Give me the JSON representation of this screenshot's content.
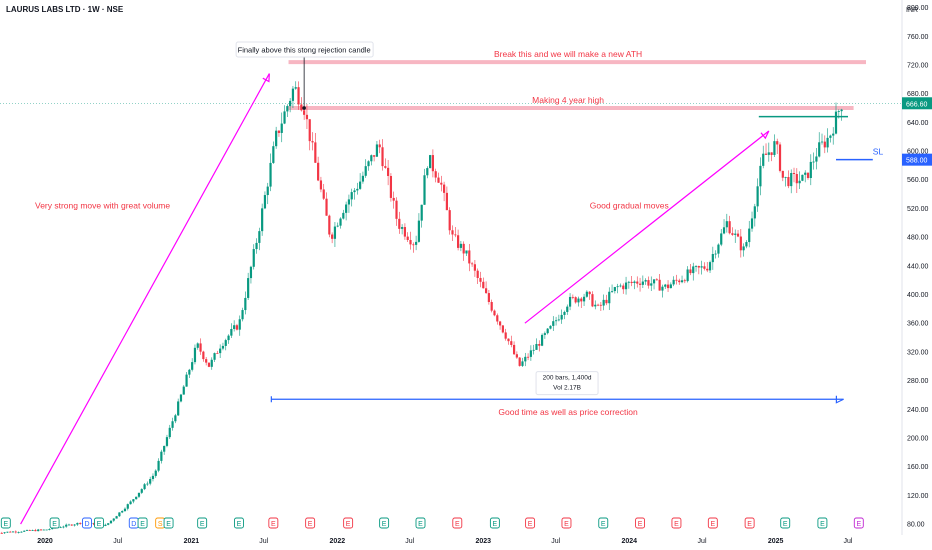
{
  "header": {
    "symbol": "LAURUS LABS LTD · 1W · NSE",
    "currency": "INR"
  },
  "chart_data": {
    "type": "candlestick",
    "ylim": [
      55,
      805
    ],
    "y_ticks": [
      "800.00",
      "760.00",
      "720.00",
      "680.00",
      "640.00",
      "600.00",
      "560.00",
      "520.00",
      "480.00",
      "440.00",
      "400.00",
      "360.00",
      "320.00",
      "280.00",
      "240.00",
      "200.00",
      "160.00",
      "120.00",
      "80.00"
    ],
    "x_ticks": [
      {
        "label": "2020",
        "date": "2020-01-01"
      },
      {
        "label": "Jul",
        "date": "2020-07-01"
      },
      {
        "label": "2021",
        "date": "2021-01-01"
      },
      {
        "label": "Jul",
        "date": "2021-07-01"
      },
      {
        "label": "2022",
        "date": "2022-01-01"
      },
      {
        "label": "Jul",
        "date": "2022-07-01"
      },
      {
        "label": "2023",
        "date": "2023-01-01"
      },
      {
        "label": "Jul",
        "date": "2023-07-01"
      },
      {
        "label": "2024",
        "date": "2024-01-01"
      },
      {
        "label": "Jul",
        "date": "2024-07-01"
      },
      {
        "label": "2025",
        "date": "2025-01-01"
      },
      {
        "label": "Jul",
        "date": "2025-07-01"
      }
    ],
    "last_price": "666.60",
    "sl_price": "588.00",
    "price_path": [
      [
        "2019-09-01",
        68
      ],
      [
        "2020-01-01",
        72
      ],
      [
        "2020-04-01",
        82
      ],
      [
        "2020-06-01",
        78
      ],
      [
        "2020-08-01",
        110
      ],
      [
        "2020-10-01",
        150
      ],
      [
        "2020-12-01",
        250
      ],
      [
        "2021-01-15",
        330
      ],
      [
        "2021-02-15",
        300
      ],
      [
        "2021-03-15",
        330
      ],
      [
        "2021-05-01",
        360
      ],
      [
        "2021-06-15",
        480
      ],
      [
        "2021-08-01",
        620
      ],
      [
        "2021-09-15",
        690
      ],
      [
        "2021-10-10",
        660
      ],
      [
        "2021-11-15",
        560
      ],
      [
        "2021-12-15",
        480
      ],
      [
        "2022-01-15",
        520
      ],
      [
        "2022-03-01",
        560
      ],
      [
        "2022-04-15",
        610
      ],
      [
        "2022-06-01",
        500
      ],
      [
        "2022-07-15",
        470
      ],
      [
        "2022-08-15",
        590
      ],
      [
        "2022-09-15",
        560
      ],
      [
        "2022-10-15",
        480
      ],
      [
        "2022-11-15",
        460
      ],
      [
        "2023-01-15",
        390
      ],
      [
        "2023-03-01",
        340
      ],
      [
        "2023-04-01",
        300
      ],
      [
        "2023-05-01",
        320
      ],
      [
        "2023-06-15",
        350
      ],
      [
        "2023-08-01",
        390
      ],
      [
        "2023-09-15",
        400
      ],
      [
        "2023-10-15",
        380
      ],
      [
        "2023-12-01",
        410
      ],
      [
        "2024-02-01",
        420
      ],
      [
        "2024-04-01",
        410
      ],
      [
        "2024-06-01",
        430
      ],
      [
        "2024-07-15",
        440
      ],
      [
        "2024-09-01",
        500
      ],
      [
        "2024-10-15",
        460
      ],
      [
        "2024-12-01",
        590
      ],
      [
        "2025-01-01",
        610
      ],
      [
        "2025-01-20",
        560
      ],
      [
        "2025-03-15",
        560
      ],
      [
        "2025-04-15",
        600
      ],
      [
        "2025-05-15",
        620
      ],
      [
        "2025-06-15",
        667
      ]
    ],
    "horizontal_levels": [
      {
        "name": "ath-line",
        "price": 724,
        "from": "2021-09-01",
        "to": "2025-08-15",
        "color": "#f7b6c2"
      },
      {
        "name": "four-year-high-line",
        "price": 660,
        "from": "2021-09-01",
        "to": "2025-07-15",
        "color": "#f7b6c2"
      },
      {
        "name": "breakout-line",
        "price": 648,
        "from": "2024-11-20",
        "to": "2025-07-01",
        "color": "#089981"
      },
      {
        "name": "sl-line",
        "price": 588,
        "from": "2025-06-01",
        "to": "2025-09-01",
        "color": "#2962ff"
      }
    ],
    "annotations": [
      {
        "name": "label-very-strong-move",
        "text": "Very strong move with great volume",
        "date": "2020-07-01",
        "price": 520,
        "color": "#f23645"
      },
      {
        "name": "label-break-ath",
        "text": "Break this and we will make a new ATH",
        "date": "2023-08-01",
        "price": 731,
        "color": "#f23645"
      },
      {
        "name": "label-four-year-high",
        "text": "Making 4 year high",
        "date": "2023-08-01",
        "price": 667,
        "color": "#f23645"
      },
      {
        "name": "label-gradual-moves",
        "text": "Good gradual moves",
        "date": "2024-01-01",
        "price": 520,
        "color": "#f23645"
      },
      {
        "name": "label-time-price-correction",
        "text": "Good time as well as price correction",
        "date": "2023-08-01",
        "price": 232,
        "color": "#f23645"
      },
      {
        "name": "label-sl",
        "text": "SL",
        "date": "2025-09-01",
        "price": 595,
        "color": "#2962ff"
      }
    ],
    "callout": {
      "text": "Finally above this stong rejection candle",
      "date": "2021-10-10",
      "price": 660
    },
    "range_box": {
      "line1": "200 bars, 1,400d",
      "line2": "Vol 2.17B",
      "date": "2023-08-01",
      "price": 287
    },
    "arrows": [
      {
        "name": "arrow-strong-move",
        "from": [
          "2019-11-01",
          80
        ],
        "to": [
          "2021-07-15",
          708
        ],
        "color": "#ff00ff"
      },
      {
        "name": "arrow-gradual-moves",
        "from": [
          "2023-04-15",
          360
        ],
        "to": [
          "2024-12-15",
          628
        ],
        "color": "#ff00ff"
      },
      {
        "name": "arrow-time-correction",
        "from": [
          "2021-07-20",
          254
        ],
        "to": [
          "2025-06-20",
          254
        ],
        "color": "#2962ff"
      }
    ],
    "events": [
      {
        "letter": "E",
        "date": "2019-09-25",
        "color": "#089981"
      },
      {
        "letter": "E",
        "date": "2020-01-25",
        "color": "#089981"
      },
      {
        "letter": "D",
        "date": "2020-04-15",
        "color": "#2962ff"
      },
      {
        "letter": "E",
        "date": "2020-05-15",
        "color": "#089981"
      },
      {
        "letter": "D",
        "date": "2020-08-10",
        "color": "#2962ff"
      },
      {
        "letter": "E",
        "date": "2020-09-01",
        "color": "#089981"
      },
      {
        "letter": "S",
        "date": "2020-10-15",
        "color": "#ff9800"
      },
      {
        "letter": "E",
        "date": "2020-11-05",
        "color": "#089981"
      },
      {
        "letter": "E",
        "date": "2021-01-28",
        "color": "#089981"
      },
      {
        "letter": "E",
        "date": "2021-04-30",
        "color": "#089981"
      },
      {
        "letter": "E",
        "date": "2021-07-25",
        "color": "#f23645"
      },
      {
        "letter": "E",
        "date": "2021-10-25",
        "color": "#f23645"
      },
      {
        "letter": "E",
        "date": "2022-01-28",
        "color": "#f23645"
      },
      {
        "letter": "E",
        "date": "2022-04-28",
        "color": "#089981"
      },
      {
        "letter": "E",
        "date": "2022-07-28",
        "color": "#089981"
      },
      {
        "letter": "E",
        "date": "2022-10-28",
        "color": "#f23645"
      },
      {
        "letter": "E",
        "date": "2023-01-30",
        "color": "#089981"
      },
      {
        "letter": "E",
        "date": "2023-04-28",
        "color": "#f23645"
      },
      {
        "letter": "E",
        "date": "2023-07-28",
        "color": "#f23645"
      },
      {
        "letter": "E",
        "date": "2023-10-28",
        "color": "#089981"
      },
      {
        "letter": "E",
        "date": "2024-01-28",
        "color": "#f23645"
      },
      {
        "letter": "E",
        "date": "2024-04-28",
        "color": "#f23645"
      },
      {
        "letter": "E",
        "date": "2024-07-28",
        "color": "#f23645"
      },
      {
        "letter": "E",
        "date": "2024-10-28",
        "color": "#f23645"
      },
      {
        "letter": "E",
        "date": "2025-01-25",
        "color": "#089981"
      },
      {
        "letter": "E",
        "date": "2025-04-28",
        "color": "#089981"
      },
      {
        "letter": "E",
        "date": "2025-07-28",
        "color": "#c026d3"
      }
    ]
  }
}
